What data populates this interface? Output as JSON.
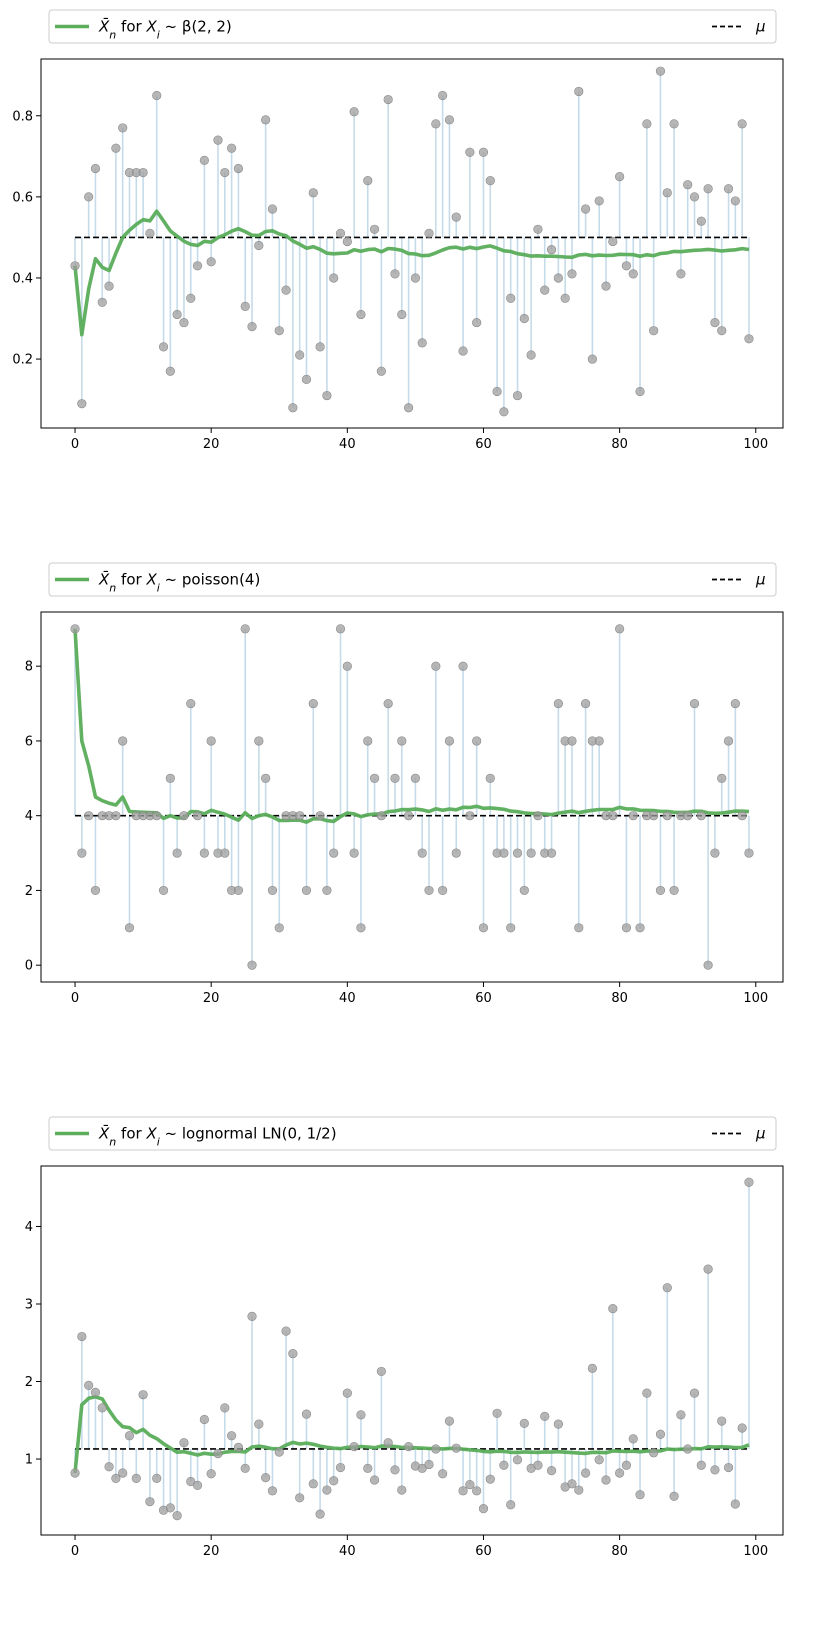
{
  "chart_data": [
    {
      "type": "scatter",
      "legend": {
        "mean_label_parts": [
          "X̄",
          "n",
          " for ",
          "X",
          "i",
          " ~ β(2, 2)"
        ],
        "mu_label": "μ",
        "placement": "top (outside, full width)"
      },
      "mu": 0.5,
      "xlim": [
        -5,
        104
      ],
      "ylim": [
        0.03,
        0.94
      ],
      "xticks": [
        0,
        20,
        40,
        60,
        80,
        100
      ],
      "yticks": [
        0.2,
        0.4,
        0.6,
        0.8
      ],
      "ytick_labels": [
        "0.2",
        "0.4",
        "0.6",
        "0.8"
      ],
      "samples": [
        0.43,
        0.09,
        0.6,
        0.67,
        0.34,
        0.38,
        0.72,
        0.77,
        0.66,
        0.66,
        0.66,
        0.51,
        0.85,
        0.23,
        0.17,
        0.31,
        0.29,
        0.35,
        0.43,
        0.69,
        0.44,
        0.74,
        0.66,
        0.72,
        0.67,
        0.33,
        0.28,
        0.48,
        0.79,
        0.57,
        0.27,
        0.37,
        0.08,
        0.21,
        0.15,
        0.61,
        0.23,
        0.11,
        0.4,
        0.51,
        0.49,
        0.81,
        0.31,
        0.64,
        0.52,
        0.17,
        0.84,
        0.41,
        0.31,
        0.08,
        0.4,
        0.24,
        0.51,
        0.78,
        0.85,
        0.79,
        0.55,
        0.22,
        0.71,
        0.29,
        0.71,
        0.64,
        0.12,
        0.07,
        0.35,
        0.11,
        0.3,
        0.21,
        0.52,
        0.37,
        0.47,
        0.4,
        0.35,
        0.41,
        0.86,
        0.57,
        0.2,
        0.59,
        0.38,
        0.49,
        0.65,
        0.43,
        0.41,
        0.12,
        0.78,
        0.27,
        0.91,
        0.61,
        0.78,
        0.41,
        0.63,
        0.6,
        0.54,
        0.62,
        0.29,
        0.27,
        0.62,
        0.59,
        0.78,
        0.25
      ]
    },
    {
      "type": "scatter",
      "legend": {
        "mean_label_parts": [
          "X̄",
          "n",
          " for ",
          "X",
          "i",
          " ~ poisson(4)"
        ],
        "mu_label": "μ",
        "placement": "top (outside, full width)"
      },
      "mu": 4,
      "xlim": [
        -5,
        104
      ],
      "ylim": [
        -0.45,
        9.45
      ],
      "xticks": [
        0,
        20,
        40,
        60,
        80,
        100
      ],
      "yticks": [
        0,
        2,
        4,
        6,
        8
      ],
      "ytick_labels": [
        "0",
        "2",
        "4",
        "6",
        "8"
      ],
      "samples": [
        9,
        3,
        4,
        2,
        4,
        4,
        4,
        6,
        1,
        4,
        4,
        4,
        4,
        2,
        5,
        3,
        4,
        7,
        4,
        3,
        6,
        3,
        3,
        2,
        2,
        9,
        0,
        6,
        5,
        2,
        1,
        4,
        4,
        4,
        2,
        7,
        4,
        2,
        3,
        9,
        8,
        3,
        1,
        6,
        5,
        4,
        7,
        5,
        6,
        4,
        5,
        3,
        2,
        8,
        2,
        6,
        3,
        8,
        4,
        6,
        1,
        5,
        3,
        3,
        1,
        3,
        2,
        3,
        4,
        3,
        3,
        7,
        6,
        6,
        1,
        7,
        6,
        6,
        4,
        4,
        9,
        1,
        4,
        1,
        4,
        4,
        2,
        4,
        2,
        4,
        4,
        7,
        4,
        0,
        3,
        5,
        6,
        7,
        4,
        3
      ]
    },
    {
      "type": "scatter",
      "legend": {
        "mean_label_parts": [
          "X̄",
          "n",
          " for ",
          "X",
          "i",
          " ~ lognormal LN(0, 1/2)"
        ],
        "mu_label": "μ",
        "placement": "top (outside, full width)"
      },
      "mu": 1.13,
      "xlim": [
        -5,
        104
      ],
      "ylim": [
        0.02,
        4.78
      ],
      "xticks": [
        0,
        20,
        40,
        60,
        80,
        100
      ],
      "yticks": [
        1,
        2,
        3,
        4
      ],
      "ytick_labels": [
        "1",
        "2",
        "3",
        "4"
      ],
      "samples": [
        0.82,
        2.58,
        1.95,
        1.86,
        1.66,
        0.9,
        0.75,
        0.82,
        1.3,
        0.75,
        1.83,
        0.45,
        0.75,
        0.34,
        0.37,
        0.27,
        1.21,
        0.71,
        0.66,
        1.51,
        0.81,
        1.07,
        1.66,
        1.3,
        1.15,
        0.88,
        2.84,
        1.45,
        0.76,
        0.59,
        1.09,
        2.65,
        2.36,
        0.5,
        1.58,
        0.68,
        0.29,
        0.6,
        0.72,
        0.89,
        1.85,
        1.16,
        1.57,
        0.88,
        0.73,
        2.13,
        1.21,
        0.86,
        0.6,
        1.16,
        0.91,
        0.88,
        0.93,
        1.13,
        0.81,
        1.49,
        1.14,
        0.59,
        0.67,
        0.59,
        0.36,
        0.74,
        1.59,
        0.92,
        0.41,
        0.99,
        1.46,
        0.88,
        0.92,
        1.55,
        0.85,
        1.45,
        0.64,
        0.68,
        0.6,
        0.82,
        2.17,
        0.99,
        0.73,
        2.94,
        0.82,
        0.92,
        1.26,
        0.54,
        1.85,
        1.08,
        1.32,
        3.21,
        0.52,
        1.57,
        1.13,
        1.85,
        0.92,
        3.45,
        0.86,
        1.49,
        0.89,
        0.42,
        1.4,
        4.57
      ]
    }
  ],
  "colors": {
    "running_mean": "#5aad5a",
    "points": "#9e9e9e",
    "stems": "#c6dbea",
    "mu_line": "#000000"
  }
}
